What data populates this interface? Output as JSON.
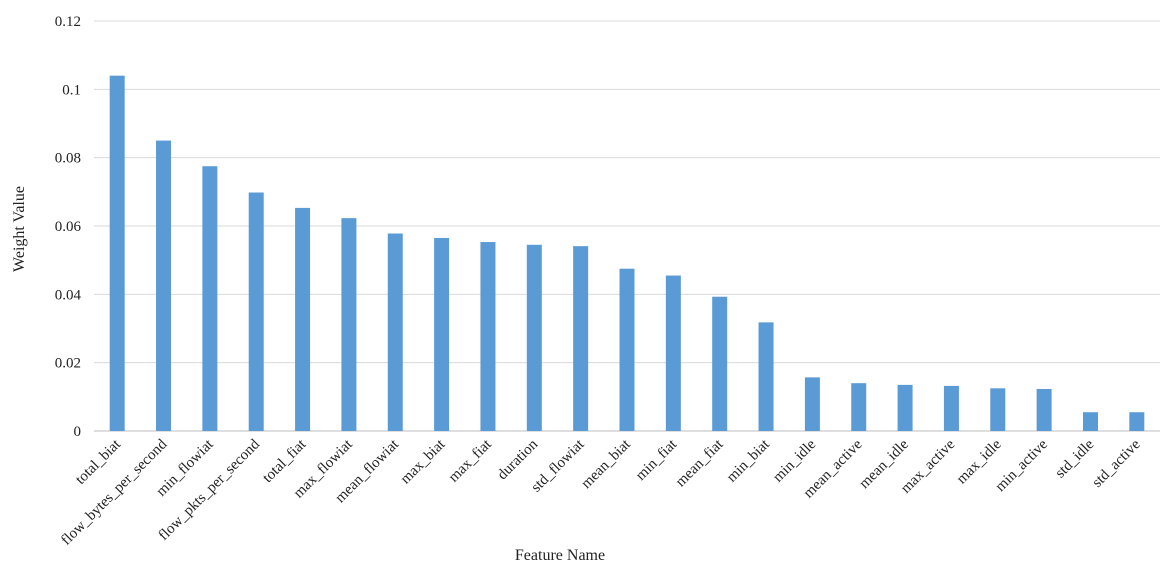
{
  "chart_data": {
    "type": "bar",
    "title": "",
    "xlabel": "Feature Name",
    "ylabel": "Weight Value",
    "ylim": [
      0,
      0.12
    ],
    "yticks": [
      0,
      0.02,
      0.04,
      0.06,
      0.08,
      0.1,
      0.12
    ],
    "ytick_labels": [
      "0",
      "0.02",
      "0.04",
      "0.06",
      "0.08",
      "0.1",
      "0.12"
    ],
    "grid": true,
    "legend": "none",
    "bar_color": "#5b9bd5",
    "grid_color": "#d9d9d9",
    "categories": [
      "total_biat",
      "flow_bytes_per_second",
      "min_flowiat",
      "flow_pkts_per_second",
      "total_fiat",
      "max_flowiat",
      "mean_flowiat",
      "max_biat",
      "max_fiat",
      "duration",
      "std_flowiat",
      "mean_biat",
      "min_fiat",
      "mean_fiat",
      "min_biat",
      "min_idle",
      "mean_active",
      "mean_idle",
      "max_active",
      "max_idle",
      "min_active",
      "std_idle",
      "std_active"
    ],
    "values": [
      0.104,
      0.085,
      0.0775,
      0.0698,
      0.0653,
      0.0623,
      0.0578,
      0.0565,
      0.0553,
      0.0545,
      0.0541,
      0.0475,
      0.0455,
      0.0393,
      0.0318,
      0.0157,
      0.014,
      0.0135,
      0.0132,
      0.0125,
      0.0123,
      0.0055,
      0.0055
    ]
  }
}
